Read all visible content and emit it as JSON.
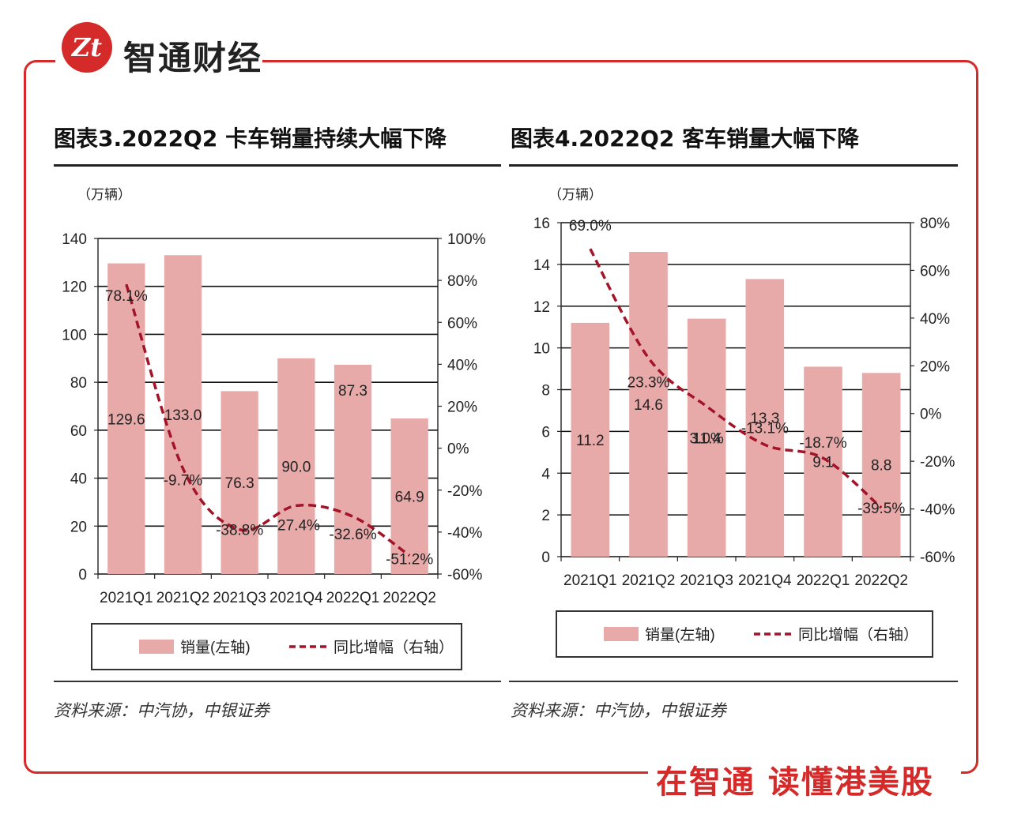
{
  "brand": {
    "logo_text": "Zt",
    "name": "智通财经"
  },
  "footer": {
    "slogan": "在智通 读懂港美股"
  },
  "colors": {
    "accent": "#d42a2a",
    "bar": "#e8a9a9",
    "line": "#a31428"
  },
  "chart_data": [
    {
      "type": "bar",
      "title": "图表3.2022Q2 卡车销量持续大幅下降",
      "unit_label": "（万辆）",
      "categories": [
        "2021Q1",
        "2021Q2",
        "2021Q3",
        "2021Q4",
        "2022Q1",
        "2022Q2"
      ],
      "series": [
        {
          "name": "销量(左轴)",
          "axis": "left",
          "kind": "bar",
          "values": [
            129.6,
            133.0,
            76.3,
            90.0,
            87.3,
            64.9
          ],
          "labels": [
            "129.6",
            "133.0",
            "76.3",
            "90.0",
            "87.3",
            "64.9"
          ]
        },
        {
          "name": "同比增幅（右轴）",
          "axis": "right",
          "kind": "line",
          "style": "dashed",
          "values": [
            78.1,
            -9.7,
            -38.8,
            -27.4,
            -32.6,
            -51.2
          ],
          "labels": [
            "78.1%",
            "-9.7%",
            "-38.8%",
            "-27.4%",
            "-32.6%",
            "-51.2%"
          ]
        }
      ],
      "ylim_left": [
        0,
        140
      ],
      "yticks_left": [
        "0",
        "20",
        "40",
        "60",
        "80",
        "100",
        "120",
        "140"
      ],
      "ylim_right": [
        -60,
        100
      ],
      "yticks_right": [
        "-60%",
        "-40%",
        "-20%",
        "0%",
        "20%",
        "40%",
        "60%",
        "80%",
        "100%"
      ],
      "grid": true,
      "legend": [
        "销量(左轴)",
        "同比增幅（右轴）"
      ],
      "source": "资料来源：中汽协，中银证券"
    },
    {
      "type": "bar",
      "title": "图表4.2022Q2 客车销量大幅下降",
      "unit_label": "（万辆）",
      "categories": [
        "2021Q1",
        "2021Q2",
        "2021Q3",
        "2021Q4",
        "2022Q1",
        "2022Q2"
      ],
      "series": [
        {
          "name": "销量(左轴)",
          "axis": "left",
          "kind": "bar",
          "values": [
            11.2,
            14.6,
            11.4,
            13.3,
            9.1,
            8.8
          ],
          "labels": [
            "11.2",
            "14.6",
            "11.4",
            "13.3",
            "9.1",
            "8.8"
          ]
        },
        {
          "name": "同比增幅（右轴）",
          "axis": "right",
          "kind": "line",
          "style": "dashed",
          "values": [
            69.0,
            23.3,
            3.0,
            -13.1,
            -18.7,
            -39.5
          ],
          "labels": [
            "69.0%",
            "23.3%",
            "3.0%",
            "-13.1%",
            "-18.7%",
            "-39.5%"
          ]
        }
      ],
      "ylim_left": [
        0,
        16
      ],
      "yticks_left": [
        "0",
        "2",
        "4",
        "6",
        "8",
        "10",
        "12",
        "14",
        "16"
      ],
      "ylim_right": [
        -60,
        80
      ],
      "yticks_right": [
        "-60%",
        "-40%",
        "-20%",
        "0%",
        "20%",
        "40%",
        "60%",
        "80%"
      ],
      "grid": true,
      "legend": [
        "销量(左轴)",
        "同比增幅（右轴）"
      ],
      "source": "资料来源：中汽协，中银证券"
    }
  ]
}
